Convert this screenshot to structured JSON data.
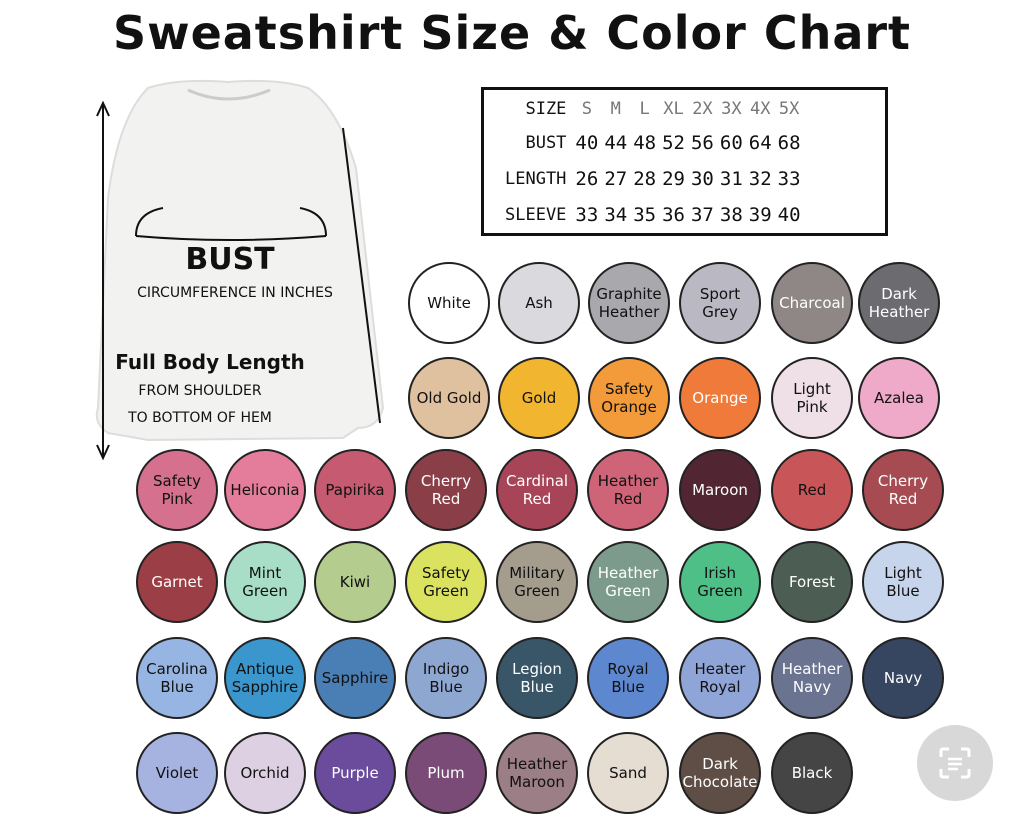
{
  "title": "Sweatshirt Size & Color Chart",
  "size_chart": {
    "headers": [
      "SIZE",
      "S",
      "M",
      "L",
      "XL",
      "2X",
      "3X",
      "4X",
      "5X"
    ],
    "rows": [
      {
        "label": "BUST",
        "values": [
          "40",
          "44",
          "48",
          "52",
          "56",
          "60",
          "64",
          "68"
        ]
      },
      {
        "label": "LENGTH",
        "values": [
          "26",
          "27",
          "28",
          "29",
          "30",
          "31",
          "32",
          "33"
        ]
      },
      {
        "label": "SLEEVE",
        "values": [
          "33",
          "34",
          "35",
          "36",
          "37",
          "38",
          "39",
          "40"
        ]
      }
    ]
  },
  "diagram": {
    "bust_label": "BUST",
    "bust_sub": "CIRCUMFERENCE IN INCHES",
    "length_label": "Full Body Length",
    "length_sub1": "FROM SHOULDER",
    "length_sub2": "TO BOTTOM OF HEM"
  },
  "colors": [
    {
      "name": "White",
      "hex": "#ffffff",
      "text": "#111"
    },
    {
      "name": "Ash",
      "hex": "#d9d9de",
      "text": "#111"
    },
    {
      "name": "Graphite Heather",
      "hex": "#a9a9ad",
      "text": "#111"
    },
    {
      "name": "Sport Grey",
      "hex": "#b9b8c3",
      "text": "#111"
    },
    {
      "name": "Charcoal",
      "hex": "#8e8786",
      "text": "#fff"
    },
    {
      "name": "Dark Heather",
      "hex": "#6c6c70",
      "text": "#fff"
    },
    {
      "name": "Old Gold",
      "hex": "#dfc19f",
      "text": "#111"
    },
    {
      "name": "Gold",
      "hex": "#f2b530",
      "text": "#111"
    },
    {
      "name": "Safety Orange",
      "hex": "#f39a3a",
      "text": "#111"
    },
    {
      "name": "Orange",
      "hex": "#ef7a3a",
      "text": "#fff"
    },
    {
      "name": "Light Pink",
      "hex": "#efdfe6",
      "text": "#111"
    },
    {
      "name": "Azalea",
      "hex": "#eeaac8",
      "text": "#111"
    },
    {
      "name": "Safety Pink",
      "hex": "#d5708f",
      "text": "#111"
    },
    {
      "name": "Heliconia",
      "hex": "#e47d9c",
      "text": "#111"
    },
    {
      "name": "Papirika",
      "hex": "#c55a70",
      "text": "#111"
    },
    {
      "name": "Cherry Red",
      "hex": "#8a3f48",
      "text": "#fff"
    },
    {
      "name": "Cardinal Red",
      "hex": "#a84457",
      "text": "#fff"
    },
    {
      "name": "Heather Red",
      "hex": "#cf6479",
      "text": "#111"
    },
    {
      "name": "Maroon",
      "hex": "#522533",
      "text": "#fff"
    },
    {
      "name": "Red",
      "hex": "#c85557",
      "text": "#111"
    },
    {
      "name": "Cherry Red",
      "hex": "#a54b51",
      "text": "#fff"
    },
    {
      "name": "Garnet",
      "hex": "#9c3e45",
      "text": "#fff"
    },
    {
      "name": "Mint Green",
      "hex": "#a8ddc8",
      "text": "#111"
    },
    {
      "name": "Kiwi",
      "hex": "#b4cd8f",
      "text": "#111"
    },
    {
      "name": "Safety Green",
      "hex": "#dbe25f",
      "text": "#111"
    },
    {
      "name": "Military Green",
      "hex": "#a49c8d",
      "text": "#111"
    },
    {
      "name": "Heather Green",
      "hex": "#7c9b8c",
      "text": "#fff"
    },
    {
      "name": "Irish Green",
      "hex": "#4fbf88",
      "text": "#111"
    },
    {
      "name": "Forest",
      "hex": "#4c5d53",
      "text": "#fff"
    },
    {
      "name": "Light Blue",
      "hex": "#c6d4ec",
      "text": "#111"
    },
    {
      "name": "Carolina Blue",
      "hex": "#97b5e2",
      "text": "#111"
    },
    {
      "name": "Antique Sapphire",
      "hex": "#3b96cd",
      "text": "#111"
    },
    {
      "name": "Sapphire",
      "hex": "#4a7fb5",
      "text": "#111"
    },
    {
      "name": "Indigo Blue",
      "hex": "#8ea7d1",
      "text": "#111"
    },
    {
      "name": "Legion Blue",
      "hex": "#385668",
      "text": "#fff"
    },
    {
      "name": "Royal Blue",
      "hex": "#5d87cf",
      "text": "#111"
    },
    {
      "name": "Heater Royal",
      "hex": "#8fa5d8",
      "text": "#111"
    },
    {
      "name": "Heather Navy",
      "hex": "#6a7390",
      "text": "#fff"
    },
    {
      "name": "Navy",
      "hex": "#364560",
      "text": "#fff"
    },
    {
      "name": "Violet",
      "hex": "#a6b3e0",
      "text": "#111"
    },
    {
      "name": "Orchid",
      "hex": "#dcd0e2",
      "text": "#111"
    },
    {
      "name": "Purple",
      "hex": "#6a4b9c",
      "text": "#fff"
    },
    {
      "name": "Plum",
      "hex": "#7b4b78",
      "text": "#fff"
    },
    {
      "name": "Heather Maroon",
      "hex": "#9c7f86",
      "text": "#111"
    },
    {
      "name": "Sand",
      "hex": "#e5dcd2",
      "text": "#111"
    },
    {
      "name": "Dark Chocolate",
      "hex": "#5e4e45",
      "text": "#fff"
    },
    {
      "name": "Black",
      "hex": "#454545",
      "text": "#fff"
    }
  ]
}
